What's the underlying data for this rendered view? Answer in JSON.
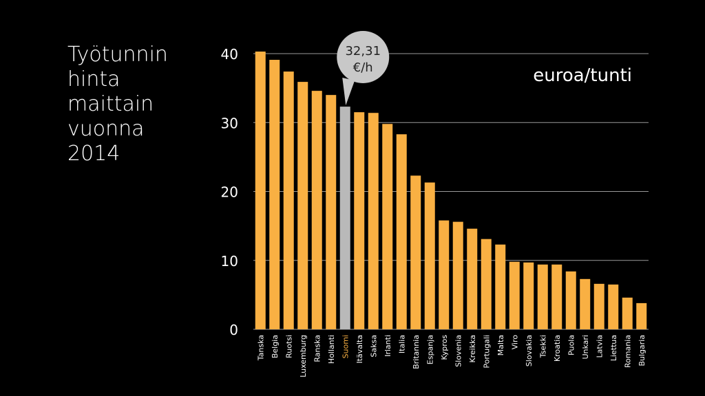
{
  "title_lines": [
    "Työtunnin",
    "hinta",
    "maittain",
    "vuonna",
    "2014"
  ],
  "colors": {
    "background": "#000000",
    "bar": "#F9B043",
    "highlight_bar": "#B9B9B9",
    "highlight_label": "#F9B043",
    "grid": "#9A9A9A",
    "text": "#FFFFFF",
    "callout_fill": "#C8C8C8",
    "callout_text": "#222222"
  },
  "callout": {
    "line1": "32,31",
    "line2": "€/h"
  },
  "chart_data": {
    "type": "bar",
    "title": "Työtunnin hinta maittain vuonna 2014",
    "unit_label": "euroa/tunti",
    "xlabel": "",
    "ylabel": "",
    "ylim": [
      0,
      40
    ],
    "yticks": [
      0,
      10,
      20,
      30,
      40
    ],
    "grid": true,
    "highlight_category": "Suomi",
    "categories": [
      "Tanska",
      "Belgia",
      "Ruotsi",
      "Luxemburg",
      "Ranska",
      "Hollanti",
      "Suomi",
      "Itävalta",
      "Saksa",
      "Irlanti",
      "Italia",
      "Britannia",
      "Espanja",
      "Kypros",
      "Slovenia",
      "Kreikka",
      "Portugali",
      "Malta",
      "Viro",
      "Slovakia",
      "Tsekki",
      "Kroatia",
      "Puola",
      "Unkari",
      "Latvia",
      "Liettua",
      "Romania",
      "Bulgaria"
    ],
    "values": [
      40.3,
      39.1,
      37.4,
      35.9,
      34.6,
      34.0,
      32.31,
      31.5,
      31.4,
      29.8,
      28.3,
      22.3,
      21.3,
      15.8,
      15.6,
      14.6,
      13.1,
      12.3,
      9.8,
      9.7,
      9.4,
      9.4,
      8.4,
      7.3,
      6.6,
      6.5,
      4.6,
      3.8
    ]
  }
}
